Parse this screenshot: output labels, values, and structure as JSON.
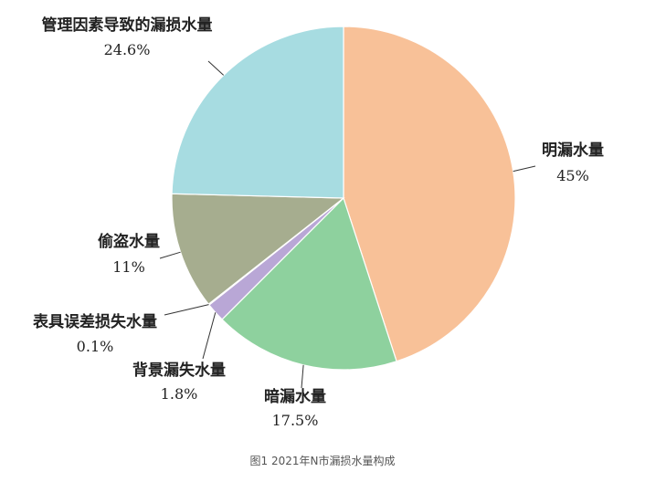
{
  "caption": "图1 2021年N市漏损水量构成",
  "chart_data": {
    "type": "pie",
    "start": "top",
    "direction": "clockwise",
    "title": "",
    "slices": [
      {
        "name": "明漏水量",
        "value": 45,
        "label": "45%",
        "color": "#F8C198"
      },
      {
        "name": "暗漏水量",
        "value": 17.5,
        "label": "17.5%",
        "color": "#8ED19E"
      },
      {
        "name": "背景漏失水量",
        "value": 1.8,
        "label": "1.8%",
        "color": "#B9A7D6"
      },
      {
        "name": "表具误差损失水量",
        "value": 0.1,
        "label": "0.1%",
        "color": "#C9CCD0"
      },
      {
        "name": "偷盗水量",
        "value": 11,
        "label": "11%",
        "color": "#A6AD8F"
      },
      {
        "name": "管理因素导致的漏损水量",
        "value": 24.6,
        "label": "24.6%",
        "color": "#A7DCE1"
      }
    ]
  }
}
